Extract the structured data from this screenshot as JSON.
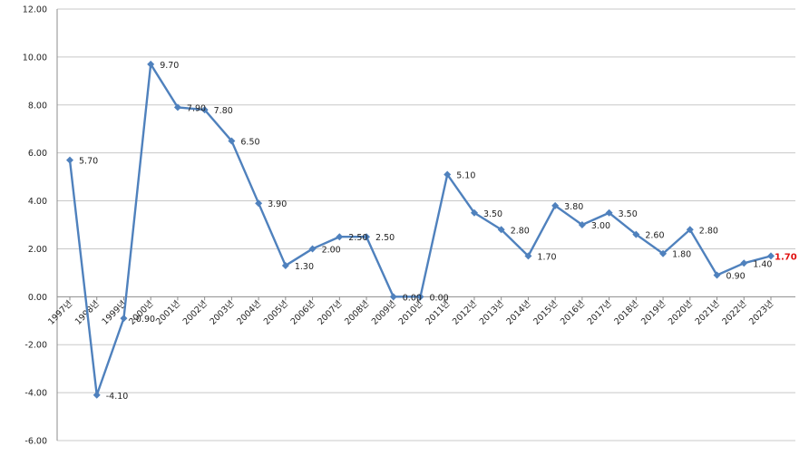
{
  "chart_data": {
    "type": "line",
    "title": "",
    "xlabel": "",
    "ylabel": "",
    "ylim": [
      -6,
      12
    ],
    "ystep": 2,
    "grid": true,
    "legend": "none",
    "categories": [
      "1997년",
      "1998년",
      "1999년",
      "2000년",
      "2001년",
      "2002년",
      "2003년",
      "2004년",
      "2005년",
      "2006년",
      "2007년",
      "2008년",
      "2009년",
      "2010년",
      "2011년",
      "2012년",
      "2013년",
      "2014년",
      "2015년",
      "2016년",
      "2017년",
      "2018년",
      "2019년",
      "2020년",
      "2021년",
      "2022년",
      "2023년"
    ],
    "series": [
      {
        "values": [
          5.7,
          -4.1,
          -0.9,
          9.7,
          7.9,
          7.8,
          6.5,
          3.9,
          1.3,
          2.0,
          2.5,
          2.5,
          0.0,
          0.0,
          5.1,
          3.5,
          2.8,
          1.7,
          3.8,
          3.0,
          3.5,
          2.6,
          1.8,
          2.8,
          0.9,
          1.4,
          1.7
        ],
        "labels": [
          "5.70",
          "-4.10",
          "-0.90",
          "9.70",
          "7.90",
          "7.80",
          "6.50",
          "3.90",
          "1.30",
          "2.00",
          "2.50",
          "2.50",
          "0.00",
          "0.00",
          "5.10",
          "3.50",
          "2.80",
          "1.70",
          "3.80",
          "3.00",
          "3.50",
          "2.60",
          "1.80",
          "2.80",
          "0.90",
          "1.40",
          "1.70"
        ]
      }
    ],
    "y_tick_labels": [
      "-6.00",
      "-4.00",
      "-2.00",
      "0.00",
      "2.00",
      "4.00",
      "6.00",
      "8.00",
      "10.00",
      "12.00"
    ],
    "colors": {
      "line": "#4f81bd",
      "marker": "#4f81bd",
      "grid": "#c8c8c8",
      "axis": "#8c8c8c",
      "highlight": "#e01010"
    },
    "highlight_index": 26
  }
}
